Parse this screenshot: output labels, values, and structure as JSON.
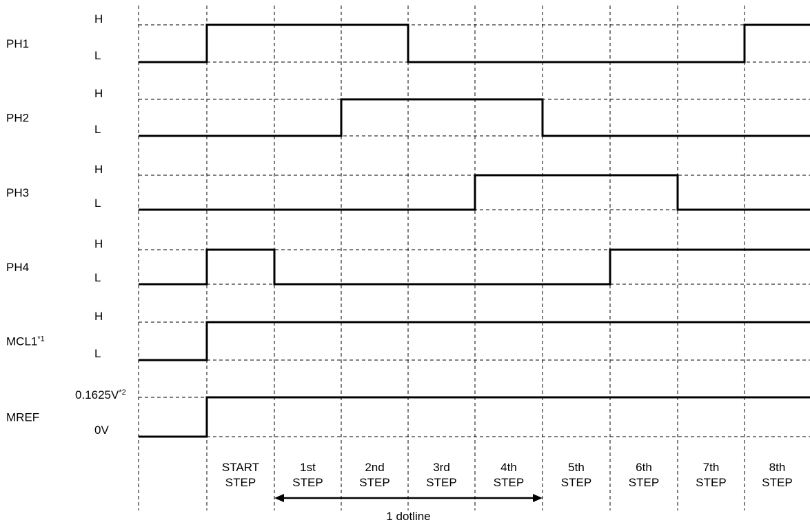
{
  "signals": [
    {
      "name": "PH1",
      "name_sup": "",
      "high_label": "H",
      "low_label": "L",
      "levels": [
        "L",
        "H",
        "H",
        "H",
        "L",
        "L",
        "L",
        "L",
        "L",
        "H"
      ]
    },
    {
      "name": "PH2",
      "name_sup": "",
      "high_label": "H",
      "low_label": "L",
      "levels": [
        "L",
        "L",
        "L",
        "H",
        "H",
        "H",
        "L",
        "L",
        "L",
        "L"
      ]
    },
    {
      "name": "PH3",
      "name_sup": "",
      "high_label": "H",
      "low_label": "L",
      "levels": [
        "L",
        "L",
        "L",
        "L",
        "L",
        "H",
        "H",
        "H",
        "L",
        "L"
      ]
    },
    {
      "name": "PH4",
      "name_sup": "",
      "high_label": "H",
      "low_label": "L",
      "levels": [
        "L",
        "H",
        "L",
        "L",
        "L",
        "L",
        "L",
        "H",
        "H",
        "H"
      ]
    },
    {
      "name": "MCL1",
      "name_sup": "*1",
      "high_label": "H",
      "low_label": "L",
      "levels": [
        "L",
        "H",
        "H",
        "H",
        "H",
        "H",
        "H",
        "H",
        "H",
        "H"
      ]
    },
    {
      "name": "MREF",
      "name_sup": "",
      "high_label": "0.1625V",
      "high_label_sup": "*2",
      "low_label": "0V",
      "levels": [
        "L",
        "H",
        "H",
        "H",
        "H",
        "H",
        "H",
        "H",
        "H",
        "H"
      ]
    }
  ],
  "steps": [
    {
      "line1": "",
      "line2": ""
    },
    {
      "line1": "START",
      "line2": "STEP"
    },
    {
      "line1": "1st",
      "line2": "STEP"
    },
    {
      "line1": "2nd",
      "line2": "STEP"
    },
    {
      "line1": "3rd",
      "line2": "STEP"
    },
    {
      "line1": "4th",
      "line2": "STEP"
    },
    {
      "line1": "5th",
      "line2": "STEP"
    },
    {
      "line1": "6th",
      "line2": "STEP"
    },
    {
      "line1": "7th",
      "line2": "STEP"
    },
    {
      "line1": "8th",
      "line2": "STEP"
    }
  ],
  "annotation": {
    "label": "1 dotline",
    "from_step": 2,
    "to_step": 5
  }
}
